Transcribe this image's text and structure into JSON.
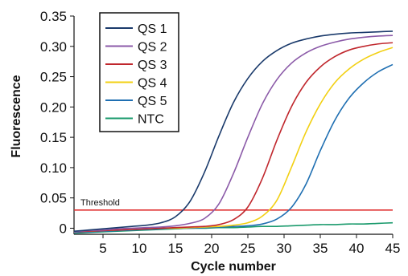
{
  "chart_data": {
    "type": "line",
    "title": "",
    "xlabel": "Cycle number",
    "ylabel": "Fluorescence",
    "xlim": [
      1,
      45
    ],
    "ylim": [
      -0.01,
      0.35
    ],
    "x_ticks": [
      5,
      10,
      15,
      20,
      25,
      30,
      35,
      40,
      45
    ],
    "x_tick_labels": [
      "5",
      "10",
      "15",
      "20",
      "25",
      "30",
      "35",
      "40",
      "45"
    ],
    "y_ticks": [
      0,
      0.05,
      0.1,
      0.15,
      0.2,
      0.25,
      0.3,
      0.35
    ],
    "y_tick_labels": [
      "0",
      "0.05",
      "0.10",
      "0.15",
      "0.20",
      "0.25",
      "0.30",
      "0.35"
    ],
    "grid": false,
    "legend_position": "top-left",
    "threshold": {
      "label": "Threshold",
      "value": 0.03,
      "color": "#e03131"
    },
    "x": [
      1,
      3,
      5,
      7,
      9,
      11,
      13,
      15,
      17,
      19,
      21,
      23,
      25,
      27,
      29,
      31,
      33,
      35,
      37,
      39,
      41,
      43,
      45
    ],
    "series": [
      {
        "name": "QS 1",
        "color": "#1a3a6b",
        "values": [
          -0.005,
          -0.003,
          -0.001,
          0.001,
          0.003,
          0.005,
          0.009,
          0.019,
          0.044,
          0.092,
          0.152,
          0.207,
          0.247,
          0.275,
          0.293,
          0.305,
          0.312,
          0.317,
          0.32,
          0.322,
          0.323,
          0.324,
          0.325
        ]
      },
      {
        "name": "QS 2",
        "color": "#8b5aa8",
        "values": [
          -0.006,
          -0.004,
          -0.003,
          -0.001,
          0.0,
          0.001,
          0.002,
          0.004,
          0.008,
          0.016,
          0.04,
          0.09,
          0.15,
          0.205,
          0.245,
          0.272,
          0.289,
          0.3,
          0.307,
          0.312,
          0.315,
          0.317,
          0.318
        ]
      },
      {
        "name": "QS 3",
        "color": "#c0272d",
        "values": [
          -0.006,
          -0.005,
          -0.004,
          -0.003,
          -0.002,
          -0.001,
          0.0,
          0.001,
          0.002,
          0.003,
          0.006,
          0.014,
          0.035,
          0.082,
          0.145,
          0.2,
          0.24,
          0.266,
          0.283,
          0.294,
          0.3,
          0.304,
          0.306
        ]
      },
      {
        "name": "QS 4",
        "color": "#f2d013",
        "values": [
          -0.006,
          -0.005,
          -0.004,
          -0.003,
          -0.002,
          -0.001,
          0.0,
          0.0,
          0.001,
          0.002,
          0.003,
          0.005,
          0.009,
          0.02,
          0.046,
          0.1,
          0.158,
          0.205,
          0.24,
          0.263,
          0.279,
          0.29,
          0.298
        ]
      },
      {
        "name": "QS 5",
        "color": "#1f6fb2",
        "values": [
          -0.007,
          -0.006,
          -0.005,
          -0.004,
          -0.003,
          -0.002,
          -0.001,
          0.0,
          0.0,
          0.001,
          0.002,
          0.003,
          0.004,
          0.007,
          0.015,
          0.034,
          0.072,
          0.128,
          0.178,
          0.215,
          0.24,
          0.258,
          0.27
        ]
      },
      {
        "name": "NTC",
        "color": "#1a9a6c",
        "values": [
          -0.008,
          -0.007,
          -0.006,
          -0.005,
          -0.004,
          -0.003,
          -0.002,
          -0.001,
          0.0,
          0.0,
          0.001,
          0.001,
          0.002,
          0.003,
          0.003,
          0.004,
          0.005,
          0.006,
          0.006,
          0.007,
          0.007,
          0.008,
          0.009
        ]
      }
    ]
  }
}
